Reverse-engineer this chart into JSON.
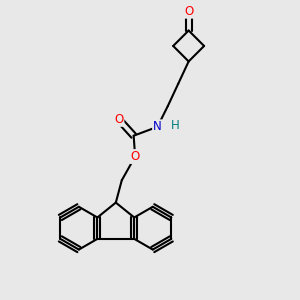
{
  "bg_color": "#e8e8e8",
  "bond_color": "#000000",
  "bond_width": 1.5,
  "atom_colors": {
    "O": "#ff0000",
    "N": "#0000cc",
    "H": "#008080",
    "C": "#000000"
  },
  "font_size": 8.5,
  "fig_width": 3.0,
  "fig_height": 3.0,
  "dpi": 100
}
